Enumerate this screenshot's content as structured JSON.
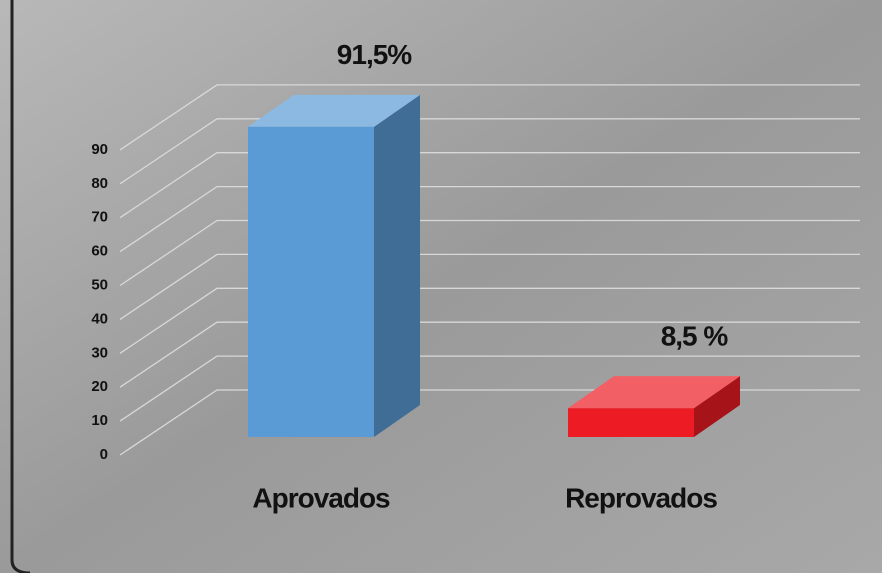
{
  "chart_data": {
    "type": "bar3d",
    "categories": [
      "Aprovados",
      "Reprovados"
    ],
    "values": [
      91.5,
      8.5
    ],
    "value_labels": [
      "91,5%",
      "8,5 %"
    ],
    "colors": [
      "#5b9bd5",
      "#ed1c24"
    ],
    "ylim": [
      0,
      100
    ],
    "yticks": [
      0,
      10,
      20,
      30,
      40,
      50,
      60,
      70,
      80,
      90
    ],
    "grid": true
  }
}
